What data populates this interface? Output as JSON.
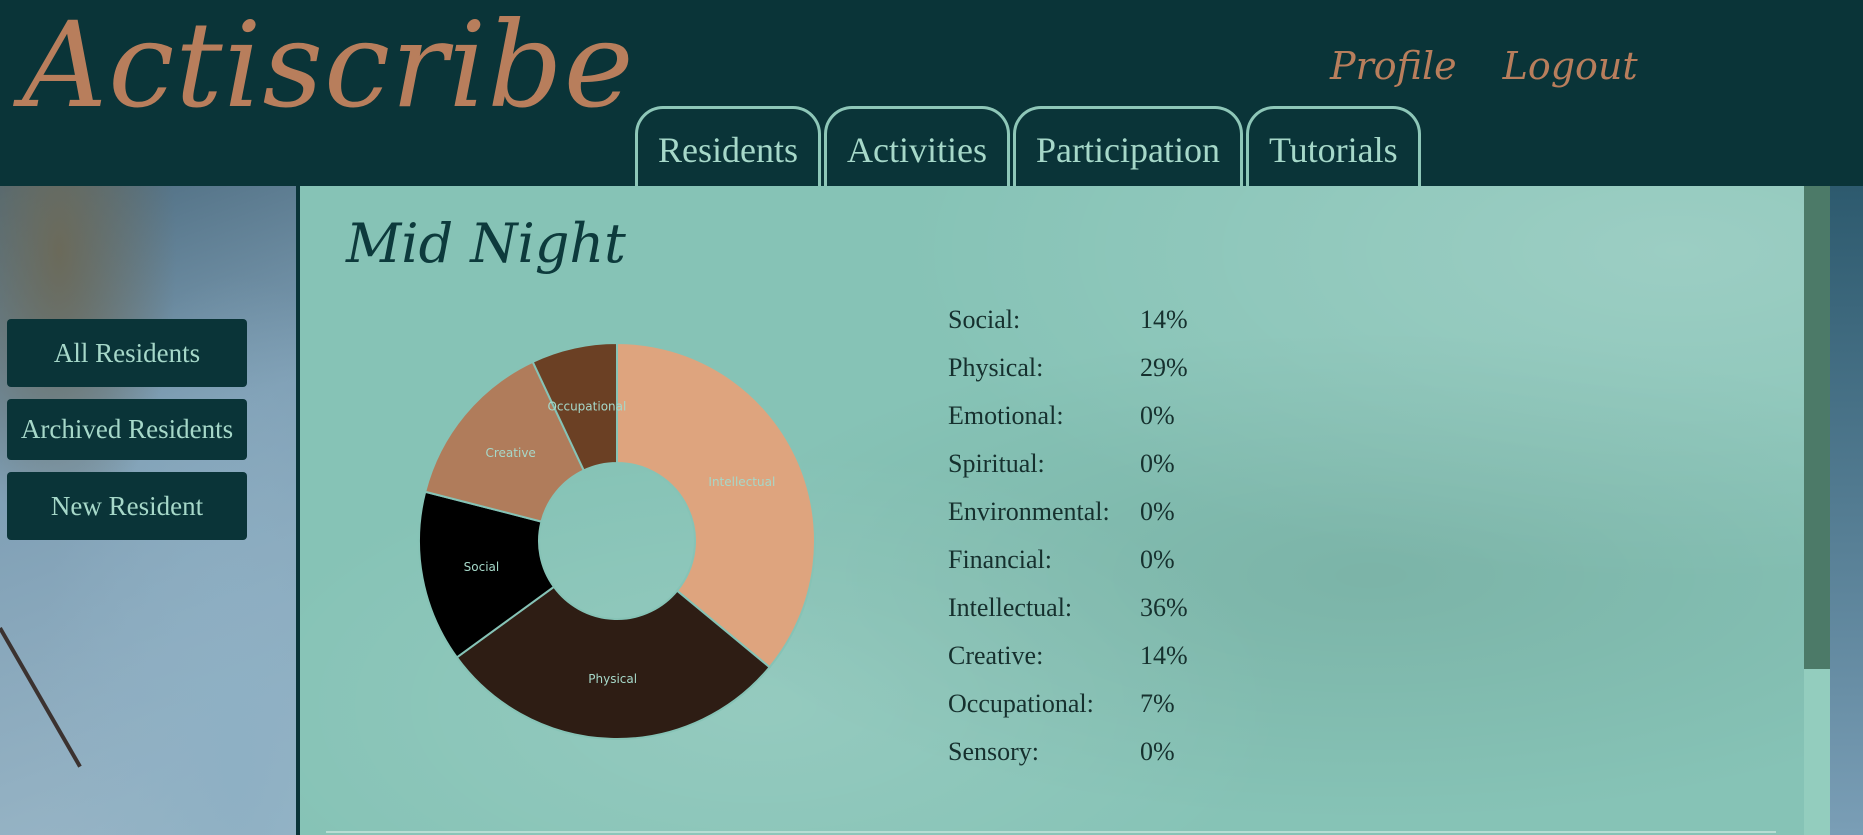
{
  "header": {
    "brand": "Actiscribe",
    "links": [
      {
        "label": "Profile"
      },
      {
        "label": "Logout"
      }
    ],
    "tabs": [
      {
        "label": "Residents"
      },
      {
        "label": "Activities"
      },
      {
        "label": "Participation"
      },
      {
        "label": "Tutorials"
      }
    ]
  },
  "sidebar": {
    "buttons": [
      {
        "label": "All Residents"
      },
      {
        "label": "Archived Residents"
      },
      {
        "label": "New Resident"
      }
    ]
  },
  "resident": {
    "name": "Mid Night"
  },
  "stats": [
    {
      "label": "Social:",
      "value": "14%"
    },
    {
      "label": "Physical:",
      "value": "29%"
    },
    {
      "label": "Emotional:",
      "value": "0%"
    },
    {
      "label": "Spiritual:",
      "value": "0%"
    },
    {
      "label": "Environmental:",
      "value": "0%"
    },
    {
      "label": "Financial:",
      "value": "0%"
    },
    {
      "label": "Intellectual:",
      "value": "36%"
    },
    {
      "label": "Creative:",
      "value": "14%"
    },
    {
      "label": "Occupational:",
      "value": "7%"
    },
    {
      "label": "Sensory:",
      "value": "0%"
    }
  ],
  "chart_data": {
    "type": "pie",
    "donut": true,
    "categories": [
      "Intellectual",
      "Physical",
      "Social",
      "Creative",
      "Occupational"
    ],
    "values": [
      36,
      29,
      14,
      14,
      7
    ],
    "colors": [
      "#dea47e",
      "#2e1d14",
      "#000000",
      "#b07c5b",
      "#6b4024"
    ],
    "label_color": "#a6d8c9"
  }
}
